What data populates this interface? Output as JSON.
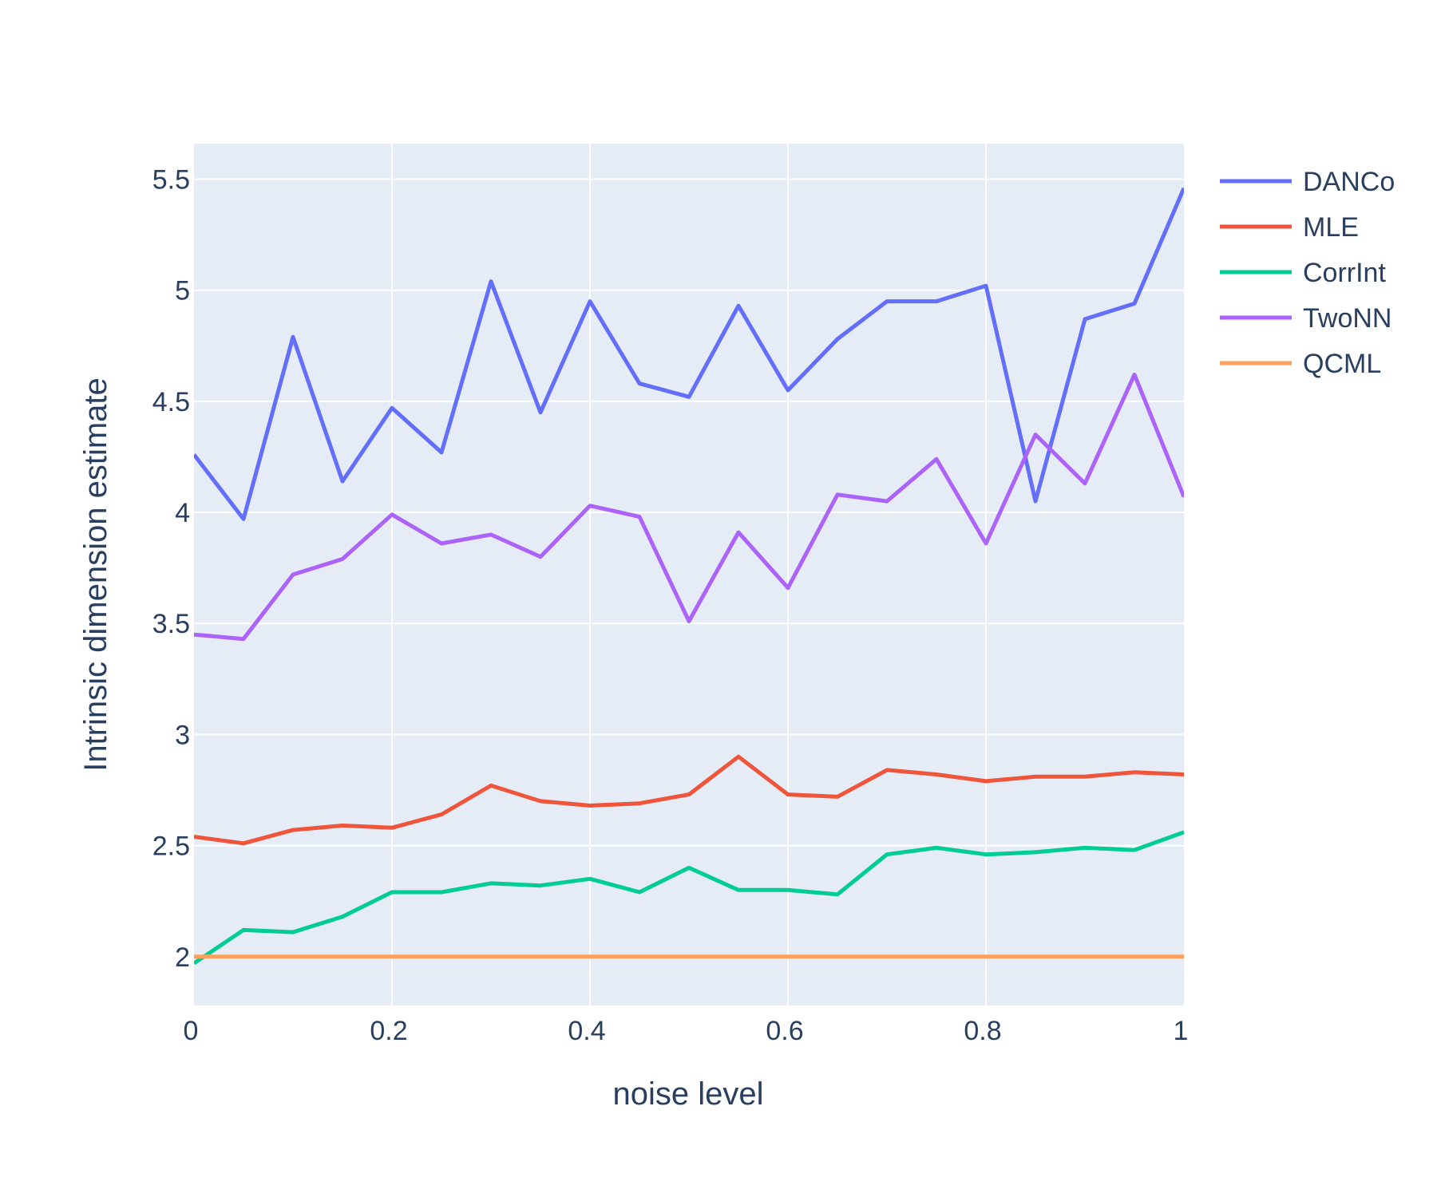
{
  "chart_data": {
    "type": "line",
    "title": "",
    "xlabel": "noise level",
    "ylabel": "Intrinsic dimension estimate",
    "xlim": [
      0,
      1
    ],
    "ylim": [
      1.78,
      5.66
    ],
    "grid": true,
    "legend_position": "top-right",
    "plot_background": "#e5ecf6",
    "x_ticks": [
      {
        "value": 0,
        "label": "0"
      },
      {
        "value": 0.2,
        "label": "0.2"
      },
      {
        "value": 0.4,
        "label": "0.4"
      },
      {
        "value": 0.6,
        "label": "0.6"
      },
      {
        "value": 0.8,
        "label": "0.8"
      },
      {
        "value": 1,
        "label": "1"
      }
    ],
    "y_ticks": [
      {
        "value": 2,
        "label": "2"
      },
      {
        "value": 2.5,
        "label": "2.5"
      },
      {
        "value": 3,
        "label": "3"
      },
      {
        "value": 3.5,
        "label": "3.5"
      },
      {
        "value": 4,
        "label": "4"
      },
      {
        "value": 4.5,
        "label": "4.5"
      },
      {
        "value": 5,
        "label": "5"
      },
      {
        "value": 5.5,
        "label": "5.5"
      }
    ],
    "x": [
      0,
      0.05,
      0.1,
      0.15,
      0.2,
      0.25,
      0.3,
      0.35,
      0.4,
      0.45,
      0.5,
      0.55,
      0.6,
      0.65,
      0.7,
      0.75,
      0.8,
      0.85,
      0.9,
      0.95,
      1
    ],
    "series": [
      {
        "name": "DANCo",
        "color": "#636efa",
        "values": [
          4.26,
          3.97,
          4.79,
          4.14,
          4.47,
          4.27,
          5.04,
          4.45,
          4.95,
          4.58,
          4.52,
          4.93,
          4.55,
          4.78,
          4.95,
          4.95,
          5.02,
          4.05,
          4.87,
          4.94,
          5.46
        ]
      },
      {
        "name": "MLE",
        "color": "#ef553b",
        "values": [
          2.54,
          2.51,
          2.57,
          2.59,
          2.58,
          2.64,
          2.77,
          2.7,
          2.68,
          2.69,
          2.73,
          2.9,
          2.73,
          2.72,
          2.84,
          2.82,
          2.79,
          2.81,
          2.81,
          2.83,
          2.82
        ]
      },
      {
        "name": "CorrInt",
        "color": "#00cc96",
        "values": [
          1.97,
          2.12,
          2.11,
          2.18,
          2.29,
          2.29,
          2.33,
          2.32,
          2.35,
          2.29,
          2.4,
          2.3,
          2.3,
          2.28,
          2.46,
          2.49,
          2.46,
          2.47,
          2.49,
          2.48,
          2.56
        ]
      },
      {
        "name": "TwoNN",
        "color": "#ab63fa",
        "values": [
          3.45,
          3.43,
          3.72,
          3.79,
          3.99,
          3.86,
          3.9,
          3.8,
          4.03,
          3.98,
          3.51,
          3.91,
          3.66,
          4.08,
          4.05,
          4.24,
          3.86,
          4.35,
          4.13,
          4.62,
          4.07
        ]
      },
      {
        "name": "QCML",
        "color": "#ffa15a",
        "values": [
          2.0,
          2.0,
          2.0,
          2.0,
          2.0,
          2.0,
          2.0,
          2.0,
          2.0,
          2.0,
          2.0,
          2.0,
          2.0,
          2.0,
          2.0,
          2.0,
          2.0,
          2.0,
          2.0,
          2.0,
          2.0
        ]
      }
    ]
  }
}
